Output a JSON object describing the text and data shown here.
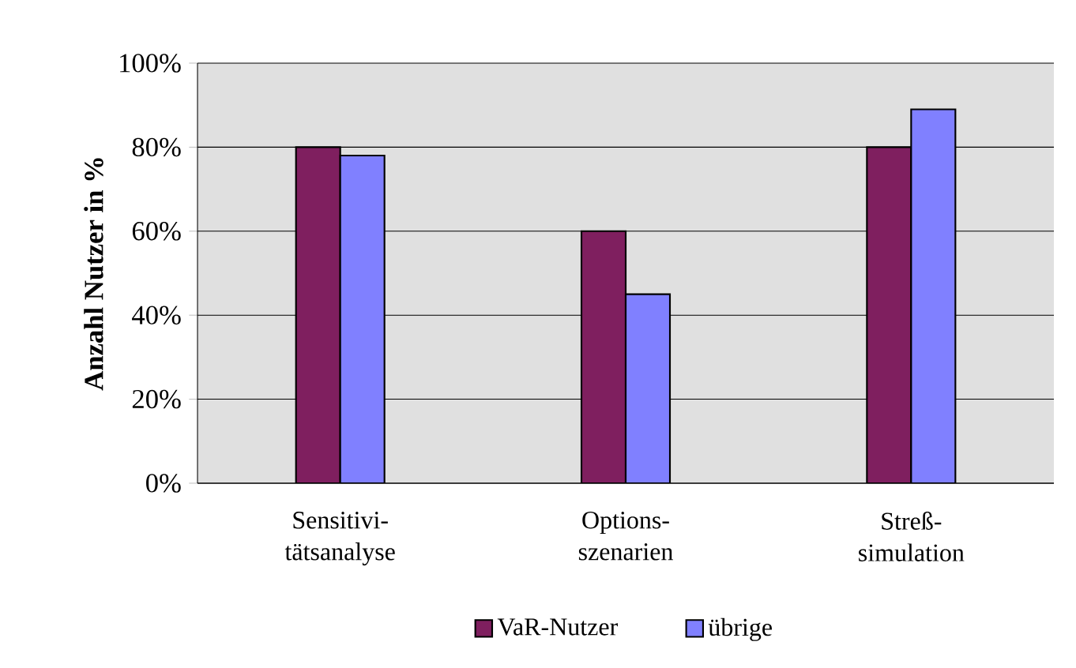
{
  "chart_data": {
    "type": "bar",
    "ylabel": "Anzahl Nutzer in %",
    "categories": [
      "Sensitivi-tätsanalyse",
      "Options-szenarien",
      "Streß-simulation"
    ],
    "series": [
      {
        "name": "VaR-Nutzer",
        "color": "#7f1f5f",
        "values": [
          80,
          60,
          80
        ]
      },
      {
        "name": "übrige",
        "color": "#8080ff",
        "values": [
          78,
          45,
          89
        ]
      }
    ],
    "ylim": [
      0,
      100
    ],
    "yticks": [
      {
        "value": 0,
        "label": "0%"
      },
      {
        "value": 20,
        "label": "20%"
      },
      {
        "value": 40,
        "label": "40%"
      },
      {
        "value": 60,
        "label": "60%"
      },
      {
        "value": 80,
        "label": "80%"
      },
      {
        "value": 100,
        "label": "100%"
      }
    ],
    "grid": "y",
    "legend": "bottom"
  }
}
